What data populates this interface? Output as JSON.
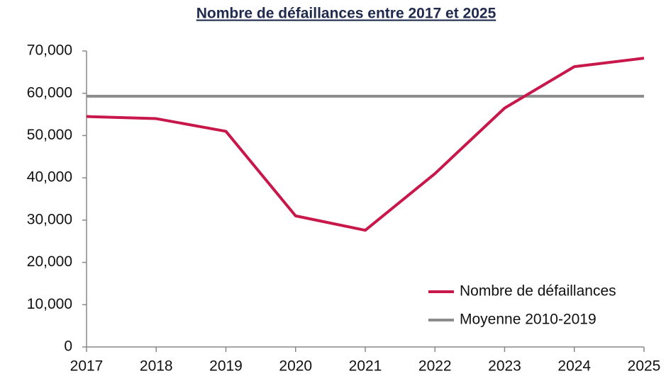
{
  "chart_data": {
    "type": "line",
    "title": "Nombre de défaillances entre 2017 et 2025",
    "x": [
      2017,
      2018,
      2019,
      2020,
      2021,
      2022,
      2023,
      2024,
      2025
    ],
    "xlim": [
      2017,
      2025
    ],
    "xticks": [
      2017,
      2018,
      2019,
      2020,
      2021,
      2022,
      2023,
      2024,
      2025
    ],
    "ylim": [
      0,
      70000
    ],
    "yticks": [
      0,
      {
        "value": 10000,
        "label": "10,000"
      },
      {
        "value": 20000,
        "label": "20,000"
      },
      {
        "value": 30000,
        "label": "30,000"
      },
      {
        "value": 40000,
        "label": "40,000"
      },
      {
        "value": 50000,
        "label": "50,000"
      },
      {
        "value": 60000,
        "label": "60,000"
      },
      {
        "value": 70000,
        "label": "70,000"
      }
    ],
    "grid": false,
    "legend": "lower right",
    "series": [
      {
        "name": "Nombre de défaillances",
        "color": "#c8174a",
        "values": [
          54500,
          54000,
          51000,
          31000,
          27600,
          41000,
          56500,
          66300,
          68300
        ]
      },
      {
        "name": "Moyenne 2010-2019",
        "color": "#8c8c8c",
        "values": [
          59300,
          59300,
          59300,
          59300,
          59300,
          59300,
          59300,
          59300,
          59300
        ]
      }
    ]
  }
}
